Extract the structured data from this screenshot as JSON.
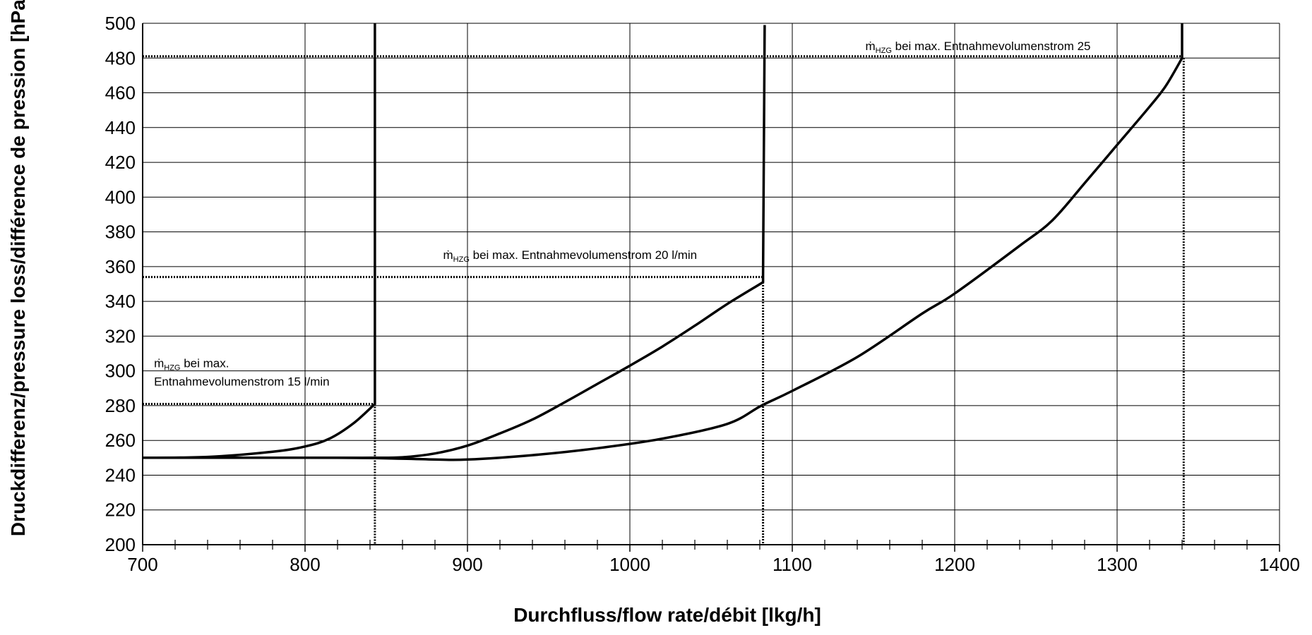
{
  "chart_data": {
    "type": "line",
    "xlabel": "Durchfluss/flow rate/débit [lkg/h]",
    "ylabel": "Druckdifferenz/pressure loss/différence de pression [hPa]",
    "xlim": [
      700,
      1400
    ],
    "ylim": [
      200,
      500
    ],
    "x_major_ticks": [
      700,
      800,
      900,
      1000,
      1100,
      1200,
      1300,
      1400
    ],
    "x_minor_step": 20,
    "y_ticks": [
      200,
      220,
      240,
      260,
      280,
      300,
      320,
      340,
      360,
      380,
      400,
      420,
      440,
      460,
      480,
      500
    ],
    "grid": true,
    "legend": "none",
    "line_color": "#000000",
    "series": [
      {
        "values": [
          [
            700,
            250
          ],
          [
            740,
            250.5
          ],
          [
            780,
            253.5
          ],
          [
            800,
            256.5
          ],
          [
            815,
            261
          ],
          [
            830,
            270
          ],
          [
            843,
            281
          ],
          [
            843,
            500
          ]
        ]
      },
      {
        "values": [
          [
            700,
            250
          ],
          [
            800,
            250
          ],
          [
            840,
            250
          ],
          [
            860,
            250.3
          ],
          [
            880,
            252.5
          ],
          [
            900,
            257
          ],
          [
            920,
            264
          ],
          [
            940,
            272
          ],
          [
            960,
            282
          ],
          [
            980,
            292.5
          ],
          [
            1000,
            303
          ],
          [
            1020,
            314
          ],
          [
            1040,
            326
          ],
          [
            1060,
            338.5
          ],
          [
            1082,
            351
          ],
          [
            1082,
            355
          ],
          [
            1083,
            499
          ]
        ]
      },
      {
        "values": [
          [
            700,
            250
          ],
          [
            820,
            250
          ],
          [
            860,
            249.5
          ],
          [
            880,
            249
          ],
          [
            900,
            249
          ],
          [
            940,
            251.5
          ],
          [
            980,
            255.5
          ],
          [
            1020,
            261
          ],
          [
            1060,
            269.5
          ],
          [
            1081,
            280
          ],
          [
            1100,
            288.5
          ],
          [
            1140,
            308
          ],
          [
            1180,
            333
          ],
          [
            1200,
            344.5
          ],
          [
            1240,
            372
          ],
          [
            1260,
            386.5
          ],
          [
            1280,
            408
          ],
          [
            1300,
            430
          ],
          [
            1320,
            452
          ],
          [
            1330,
            464
          ],
          [
            1340,
            480
          ],
          [
            1340,
            500
          ]
        ]
      }
    ],
    "reference_lines": [
      {
        "value": 281,
        "x_start": 700,
        "x_end": 843
      },
      {
        "value": 354,
        "x_start": 700,
        "x_end": 1082
      },
      {
        "value": 481,
        "x_start": 700,
        "x_end": 1340
      }
    ],
    "drop_lines": [
      {
        "value": 843,
        "y_from": 281
      },
      {
        "value": 1082,
        "y_from": 351
      },
      {
        "value": 1341,
        "y_from": 480
      }
    ],
    "annotations": [
      {
        "pre": "ṁ",
        "sub": "HZG",
        "post": " bei max.",
        "line2": "Entnahmevolumenstrom 15 l/min",
        "x": 707,
        "y": 302
      },
      {
        "pre": "ṁ",
        "sub": "HZG",
        "post": " bei max. Entnahmevolumenstrom 20 l/min",
        "line2": "",
        "x": 885,
        "y": 364.5
      },
      {
        "pre": "ṁ",
        "sub": "HZG",
        "post": " bei max. Entnahmevolumenstrom 25",
        "line2": "",
        "x": 1145,
        "y": 484.5
      }
    ]
  }
}
